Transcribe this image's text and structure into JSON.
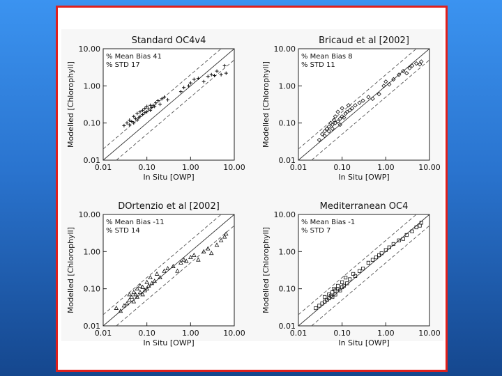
{
  "slide": {
    "frame_color": "#e0201c",
    "background_top": "#3b93f0",
    "background_bottom": "#15478e"
  },
  "chart_data": [
    {
      "type": "scatter",
      "title": "Standard OC4v4",
      "xlabel": "In Situ [OWP]",
      "ylabel": "Modelled [Chlorophyll]",
      "xscale": "log",
      "yscale": "log",
      "xlim": [
        0.01,
        10.0
      ],
      "ylim": [
        0.01,
        10.0
      ],
      "xticks": [
        "0.01",
        "0.10",
        "1.00",
        "10.00"
      ],
      "yticks": [
        "0.01",
        "0.10",
        "1.00",
        "10.00"
      ],
      "annotations": [
        "% Mean Bias 41",
        "% STD 17"
      ],
      "marker": "plus",
      "reference_lines": [
        "1:1 solid",
        "factor-of-2 dashed"
      ],
      "x": [
        0.03,
        0.035,
        0.04,
        0.04,
        0.045,
        0.05,
        0.05,
        0.055,
        0.06,
        0.06,
        0.065,
        0.07,
        0.07,
        0.08,
        0.08,
        0.09,
        0.09,
        0.1,
        0.1,
        0.11,
        0.12,
        0.12,
        0.13,
        0.14,
        0.15,
        0.16,
        0.18,
        0.2,
        0.22,
        0.25,
        0.3,
        0.6,
        0.7,
        0.9,
        1.0,
        1.2,
        1.5,
        2.0,
        2.5,
        3.0,
        3.5,
        4.0,
        5.0,
        6.0,
        6.5
      ],
      "y": [
        0.085,
        0.1,
        0.09,
        0.12,
        0.11,
        0.1,
        0.15,
        0.13,
        0.12,
        0.18,
        0.14,
        0.15,
        0.2,
        0.17,
        0.22,
        0.19,
        0.25,
        0.2,
        0.28,
        0.24,
        0.3,
        0.22,
        0.26,
        0.3,
        0.28,
        0.35,
        0.4,
        0.32,
        0.45,
        0.5,
        0.42,
        0.7,
        0.9,
        1.0,
        1.2,
        1.5,
        1.6,
        1.3,
        1.8,
        2.0,
        1.9,
        2.5,
        2.0,
        3.5,
        2.2
      ]
    },
    {
      "type": "scatter",
      "title": "Bricaud et al [2002]",
      "xlabel": "In Situ [OWP]",
      "ylabel": "Modelled [Chlorophyll]",
      "xscale": "log",
      "yscale": "log",
      "xlim": [
        0.01,
        10.0
      ],
      "ylim": [
        0.01,
        10.0
      ],
      "xticks": [
        "0.01",
        "0.10",
        "1.00",
        "10.00"
      ],
      "yticks": [
        "0.01",
        "0.10",
        "1.00",
        "10.00"
      ],
      "annotations": [
        "% Mean Bias 8",
        "% STD 11"
      ],
      "marker": "diamond",
      "reference_lines": [
        "1:1 solid",
        "factor-of-2 dashed"
      ],
      "x": [
        0.03,
        0.035,
        0.04,
        0.04,
        0.045,
        0.05,
        0.05,
        0.055,
        0.06,
        0.06,
        0.065,
        0.07,
        0.07,
        0.08,
        0.08,
        0.09,
        0.09,
        0.1,
        0.1,
        0.11,
        0.12,
        0.13,
        0.14,
        0.15,
        0.17,
        0.2,
        0.25,
        0.3,
        0.4,
        0.5,
        0.7,
        0.9,
        1.0,
        1.2,
        1.5,
        2.0,
        2.5,
        3.0,
        3.5,
        4.0,
        5.0,
        6.0,
        6.5
      ],
      "y": [
        0.035,
        0.05,
        0.06,
        0.045,
        0.07,
        0.08,
        0.06,
        0.1,
        0.09,
        0.07,
        0.12,
        0.1,
        0.15,
        0.11,
        0.2,
        0.13,
        0.09,
        0.15,
        0.25,
        0.14,
        0.18,
        0.2,
        0.3,
        0.22,
        0.25,
        0.3,
        0.35,
        0.4,
        0.5,
        0.45,
        0.6,
        1.0,
        1.3,
        1.1,
        1.5,
        2.0,
        2.5,
        2.2,
        3.0,
        3.5,
        4.0,
        3.8,
        4.5
      ]
    },
    {
      "type": "scatter",
      "title": "DOrtenzio et al [2002]",
      "xlabel": "In Situ [OWP]",
      "ylabel": "Modelled [Chlorophyll]",
      "xscale": "log",
      "yscale": "log",
      "xlim": [
        0.01,
        10.0
      ],
      "ylim": [
        0.01,
        10.0
      ],
      "xticks": [
        "0.01",
        "0.10",
        "1.00",
        "10.00"
      ],
      "yticks": [
        "0.01",
        "0.10",
        "1.00",
        "10.00"
      ],
      "annotations": [
        "% Mean Bias -11",
        "% STD 14"
      ],
      "marker": "triangle",
      "reference_lines": [
        "1:1 solid",
        "factor-of-2 dashed"
      ],
      "x": [
        0.02,
        0.025,
        0.03,
        0.035,
        0.04,
        0.04,
        0.045,
        0.05,
        0.05,
        0.055,
        0.06,
        0.06,
        0.07,
        0.07,
        0.08,
        0.08,
        0.09,
        0.1,
        0.1,
        0.11,
        0.12,
        0.13,
        0.15,
        0.17,
        0.2,
        0.25,
        0.3,
        0.4,
        0.5,
        0.6,
        0.7,
        0.8,
        1.0,
        1.2,
        1.5,
        2.0,
        2.5,
        3.0,
        4.0,
        5.0,
        6.0,
        6.5
      ],
      "y": [
        0.03,
        0.025,
        0.035,
        0.04,
        0.05,
        0.07,
        0.06,
        0.08,
        0.045,
        0.07,
        0.06,
        0.1,
        0.08,
        0.12,
        0.07,
        0.11,
        0.09,
        0.15,
        0.1,
        0.12,
        0.2,
        0.14,
        0.16,
        0.25,
        0.2,
        0.3,
        0.35,
        0.4,
        0.3,
        0.5,
        0.6,
        0.55,
        0.7,
        0.8,
        0.6,
        1.0,
        1.2,
        0.9,
        1.5,
        2.0,
        2.5,
        3.0
      ]
    },
    {
      "type": "scatter",
      "title": "Mediterranean OC4",
      "xlabel": "In Situ [OWP]",
      "ylabel": "Modelled [Chlorophyll]",
      "xscale": "log",
      "yscale": "log",
      "xlim": [
        0.01,
        10.0
      ],
      "ylim": [
        0.01,
        10.0
      ],
      "xticks": [
        "0.01",
        "0.10",
        "1.00",
        "10.00"
      ],
      "yticks": [
        "0.01",
        "0.10",
        "1.00",
        "10.00"
      ],
      "annotations": [
        "% Mean Bias -1",
        "% STD 7"
      ],
      "marker": "square",
      "reference_lines": [
        "1:1 solid",
        "factor-of-2 dashed"
      ],
      "x": [
        0.025,
        0.03,
        0.035,
        0.04,
        0.04,
        0.045,
        0.05,
        0.05,
        0.055,
        0.06,
        0.06,
        0.065,
        0.07,
        0.07,
        0.08,
        0.08,
        0.09,
        0.1,
        0.1,
        0.11,
        0.12,
        0.13,
        0.15,
        0.18,
        0.2,
        0.25,
        0.3,
        0.4,
        0.5,
        0.6,
        0.7,
        0.8,
        1.0,
        1.2,
        1.5,
        2.0,
        2.5,
        3.0,
        4.0,
        5.0,
        6.0,
        6.5
      ],
      "y": [
        0.03,
        0.035,
        0.04,
        0.045,
        0.06,
        0.05,
        0.055,
        0.07,
        0.065,
        0.08,
        0.06,
        0.1,
        0.09,
        0.07,
        0.1,
        0.12,
        0.09,
        0.15,
        0.11,
        0.12,
        0.2,
        0.14,
        0.18,
        0.25,
        0.22,
        0.3,
        0.35,
        0.5,
        0.6,
        0.7,
        0.8,
        0.9,
        1.1,
        1.3,
        1.6,
        2.0,
        2.2,
        2.8,
        3.5,
        4.5,
        5.0,
        6.0
      ]
    }
  ]
}
